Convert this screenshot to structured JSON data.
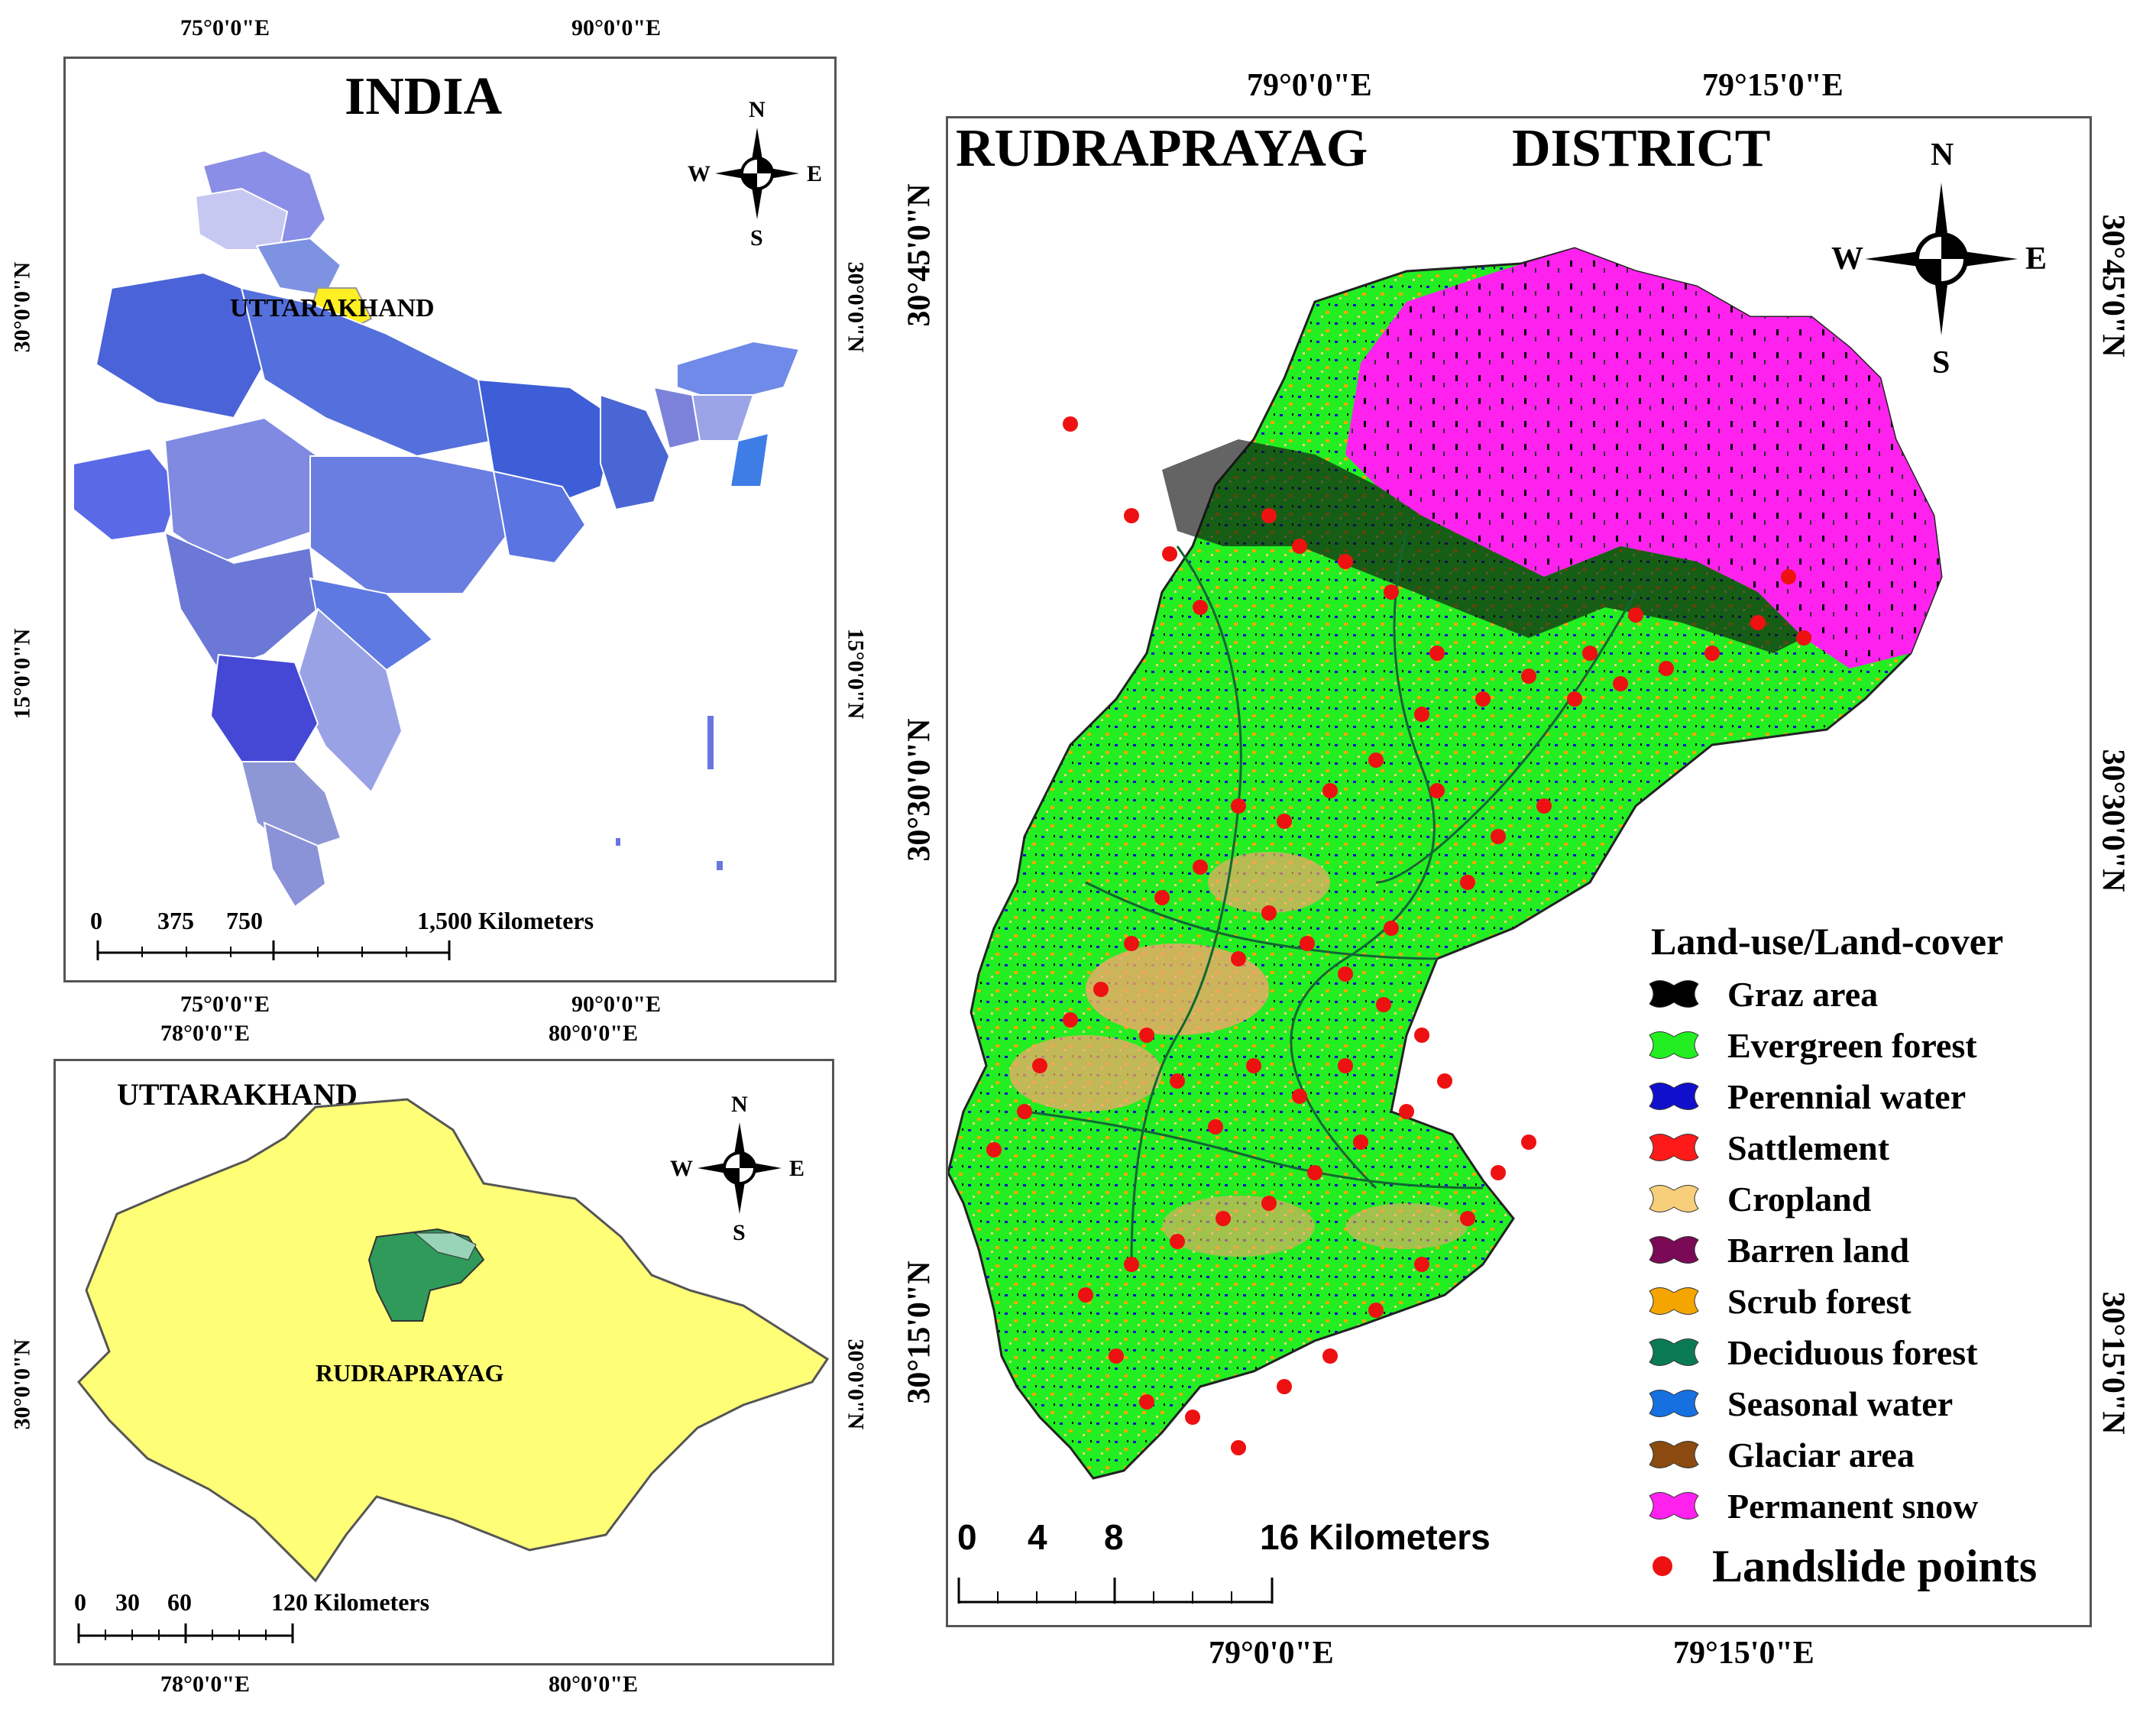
{
  "india_panel": {
    "title": "INDIA",
    "state_label": "UTTARAKHAND",
    "top_coords": [
      "75°0'0\"E",
      "90°0'0\"E"
    ],
    "bottom_coords": [
      "75°0'0\"E",
      "90°0'0\"E"
    ],
    "left_coords": [
      "30°0'0\"N",
      "15°0'0\"N"
    ],
    "right_coords": [
      "30°0'0\"N",
      "15°0'0\"N"
    ],
    "scale": {
      "ticks": [
        "0",
        "375",
        "750"
      ],
      "end": "1,500 Kilometers"
    },
    "compass": {
      "n": "N",
      "s": "S",
      "e": "E",
      "w": "W"
    }
  },
  "uttarakhand_panel": {
    "title": "UTTARAKHAND",
    "district_label": "RUDRAPRAYAG",
    "top_coords": [
      "78°0'0\"E",
      "80°0'0\"E"
    ],
    "bottom_coords": [
      "78°0'0\"E",
      "80°0'0\"E"
    ],
    "left_coords": [
      "30°0'0\"N"
    ],
    "right_coords": [
      "30°0'0\"N"
    ],
    "scale": {
      "ticks": [
        "0",
        "30",
        "60"
      ],
      "end": "120 Kilometers"
    },
    "compass": {
      "n": "N",
      "s": "S",
      "e": "E",
      "w": "W"
    }
  },
  "district_panel": {
    "title_left": "RUDRAPRAYAG",
    "title_right": "DISTRICT",
    "top_coords": [
      "79°0'0\"E",
      "79°15'0\"E"
    ],
    "bottom_coords": [
      "79°0'0\"E",
      "79°15'0\"E"
    ],
    "left_coords": [
      "30°45'0\"N",
      "30°30'0\"N",
      "30°15'0\"N"
    ],
    "right_coords": [
      "30°45'0\"N",
      "30°30'0\"N",
      "30°15'0\"N"
    ],
    "scale": {
      "ticks": [
        "0",
        "4",
        "8"
      ],
      "end": "16 Kilometers"
    },
    "compass": {
      "n": "N",
      "s": "S",
      "e": "E",
      "w": "W"
    },
    "legend": {
      "title": "Land-use/Land-cover",
      "items": [
        {
          "label": "Graz area",
          "color": "#000000"
        },
        {
          "label": "Evergreen forest",
          "color": "#22ee22"
        },
        {
          "label": "Perennial water",
          "color": "#1010cc"
        },
        {
          "label": "Sattlement",
          "color": "#ff1a1a"
        },
        {
          "label": "Cropland",
          "color": "#f7cf7a"
        },
        {
          "label": "Barren land",
          "color": "#7a0a55"
        },
        {
          "label": "Scrub forest",
          "color": "#f5a500"
        },
        {
          "label": "Deciduous forest",
          "color": "#0a7a55"
        },
        {
          "label": "Seasonal water",
          "color": "#1670e0"
        },
        {
          "label": "Glaciar area",
          "color": "#8a4a10"
        },
        {
          "label": "Permanent snow",
          "color": "#ff22ee"
        }
      ],
      "points_label": "Landslide points",
      "points_color": "#ee1111"
    }
  }
}
